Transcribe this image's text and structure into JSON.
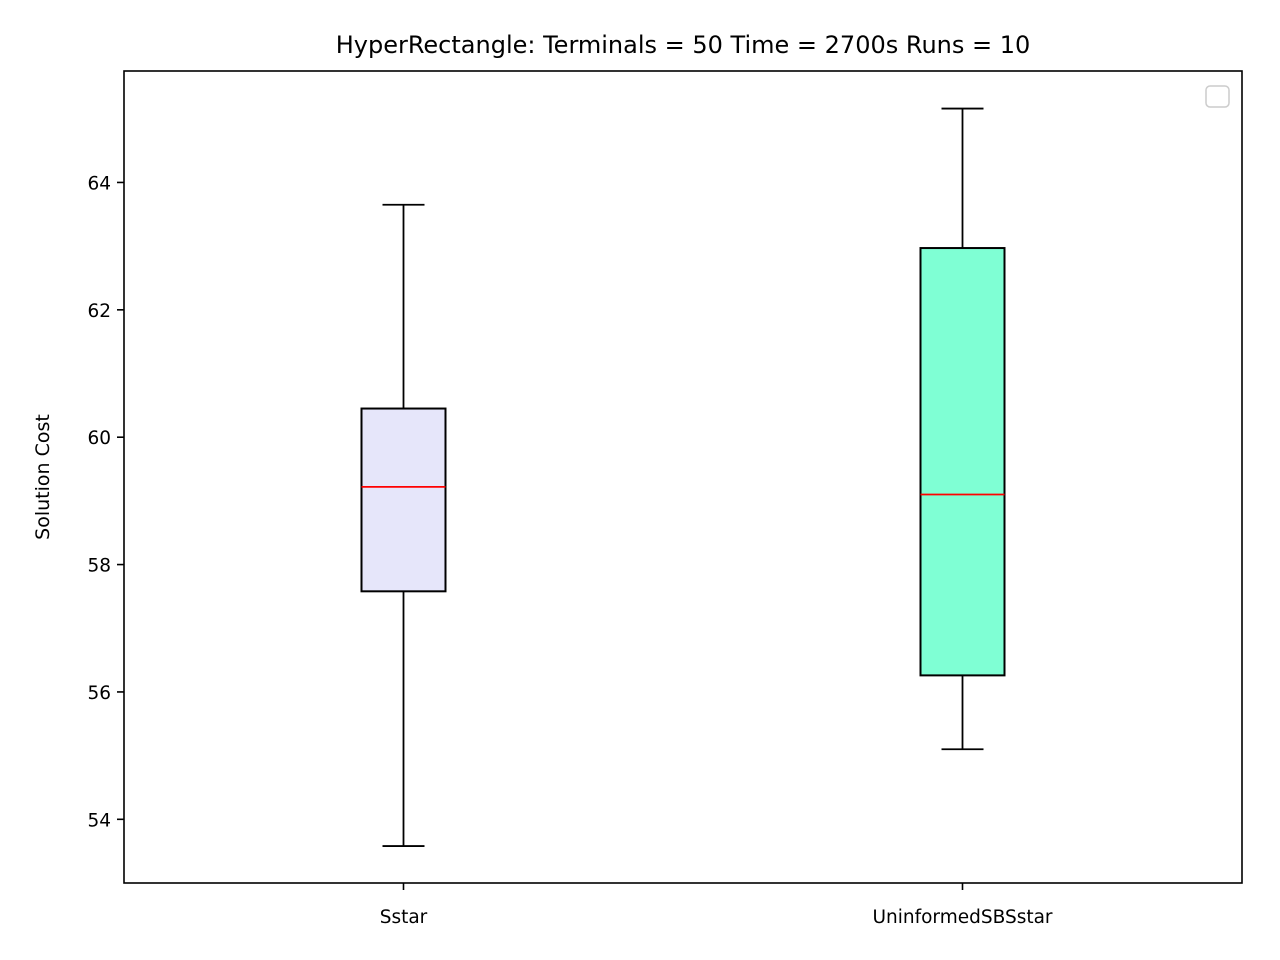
{
  "chart_data": {
    "type": "box",
    "title": "HyperRectangle:  Terminals = 50  Time = 2700s  Runs = 10",
    "xlabel": "",
    "ylabel": "Solution Cost",
    "ylim": [
      53.0,
      65.75
    ],
    "yticks": [
      "54",
      "56",
      "58",
      "60",
      "62",
      "64"
    ],
    "categories": [
      "Sstar",
      "UninformedSBSstar"
    ],
    "boxes": [
      {
        "name": "Sstar",
        "whisker_low": 53.58,
        "q1": 57.58,
        "median": 59.22,
        "q3": 60.45,
        "whisker_high": 63.65,
        "fill": "#e6e6fa"
      },
      {
        "name": "UninformedSBSstar",
        "whisker_low": 55.1,
        "q1": 56.26,
        "median": 59.1,
        "q3": 62.97,
        "whisker_high": 65.16,
        "fill": "#7fffd4"
      }
    ],
    "median_color": "#ff0000",
    "grid": false,
    "legend": {
      "position": "top-right",
      "entries": []
    }
  }
}
